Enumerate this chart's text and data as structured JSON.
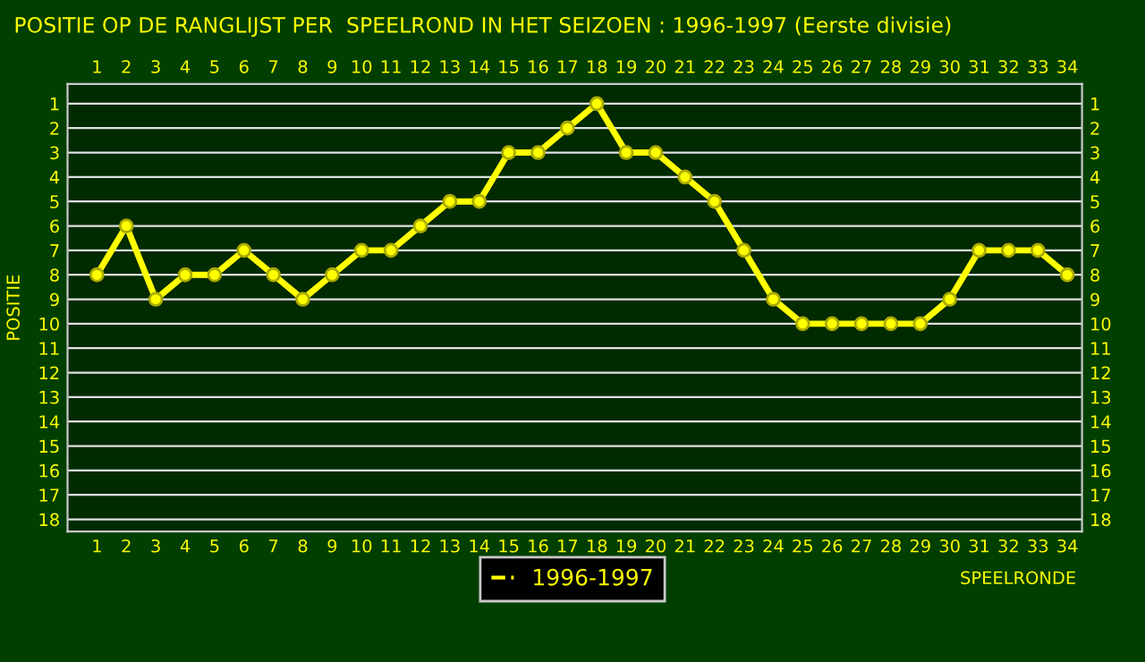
{
  "chart_data": {
    "type": "line",
    "title": "POSITIE OP DE RANGLIJST PER  SPEELROND IN HET SEIZOEN : 1996-1997 (Eerste divisie)",
    "xlabel": "SPEELRONDE",
    "ylabel": "POSITIE",
    "x": [
      1,
      2,
      3,
      4,
      5,
      6,
      7,
      8,
      9,
      10,
      11,
      12,
      13,
      14,
      15,
      16,
      17,
      18,
      19,
      20,
      21,
      22,
      23,
      24,
      25,
      26,
      27,
      28,
      29,
      30,
      31,
      32,
      33,
      34
    ],
    "series": [
      {
        "name": "1996-1997",
        "color": "#ffff00",
        "values": [
          8,
          6,
          9,
          8,
          8,
          7,
          8,
          9,
          8,
          7,
          7,
          6,
          5,
          5,
          3,
          3,
          2,
          1,
          3,
          3,
          4,
          5,
          7,
          9,
          10,
          10,
          10,
          10,
          10,
          9,
          7,
          7,
          7,
          8
        ]
      }
    ],
    "xlim": [
      0,
      34.5
    ],
    "xticks": [
      1,
      2,
      3,
      4,
      5,
      6,
      7,
      8,
      9,
      10,
      11,
      12,
      13,
      14,
      15,
      16,
      17,
      18,
      19,
      20,
      21,
      22,
      23,
      24,
      25,
      26,
      27,
      28,
      29,
      30,
      31,
      32,
      33,
      34
    ],
    "x2lim": [
      0,
      34.5
    ],
    "x2ticks": [
      1,
      2,
      3,
      4,
      5,
      6,
      7,
      8,
      9,
      10,
      11,
      12,
      13,
      14,
      15,
      16,
      17,
      18,
      19,
      20,
      21,
      22,
      23,
      24,
      25,
      26,
      27,
      28,
      29,
      30,
      31,
      32,
      33,
      34
    ],
    "ylim": [
      18.5,
      0.2
    ],
    "yticks": [
      1,
      2,
      3,
      4,
      5,
      6,
      7,
      8,
      9,
      10,
      11,
      12,
      13,
      14,
      15,
      16,
      17,
      18
    ],
    "y2lim": [
      18.5,
      0.2
    ],
    "y2ticks": [
      1,
      2,
      3,
      4,
      5,
      6,
      7,
      8,
      9,
      10,
      11,
      12,
      13,
      14,
      15,
      16,
      17,
      18
    ],
    "grid": "y",
    "legend": "bottom",
    "marker": "circle",
    "line_style": "solid"
  }
}
